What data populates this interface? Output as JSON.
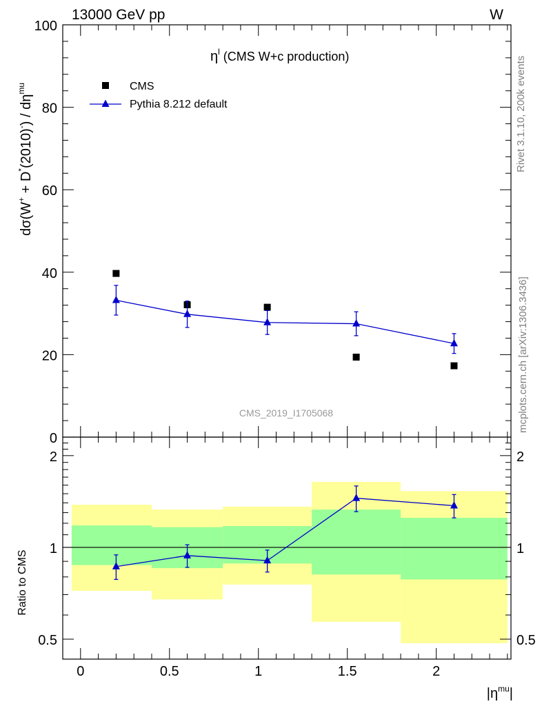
{
  "header": {
    "left": "13000 GeV pp",
    "right": "W"
  },
  "side_labels": {
    "rivet": "Rivet 3.1.10,  200k events",
    "mcplots": "mcplots.cern.ch [arXiv:1306.3436]"
  },
  "chart_data": {
    "type": "scatter",
    "title": "η^l (CMS W+c production)",
    "title_main": "η",
    "title_sup": "l",
    "title_rest": " (CMS W+c production)",
    "analysis_id": "CMS_2019_I1705068",
    "xlabel": "|η^mu|",
    "xlabel_main": "|η",
    "xlabel_sup": "mu",
    "xlabel_end": "|",
    "ylabel": "dσ(W+ + D*(2010)-) / dη^mu",
    "xlim": [
      -0.1,
      2.42
    ],
    "xticks": [
      0,
      0.5,
      1,
      1.5,
      2
    ],
    "xtick_labels": [
      "0",
      "0.5",
      "1",
      "1.5",
      "2"
    ],
    "main": {
      "ylim": [
        0,
        100
      ],
      "yticks": [
        20,
        40,
        60,
        80,
        100
      ],
      "ytick_labels": [
        "20",
        "40",
        "60",
        "80",
        "100"
      ],
      "bottom_tick_label": "0",
      "legend_position": "top-left",
      "series": [
        {
          "name": "CMS",
          "marker": "square",
          "color": "#000000",
          "x": [
            0.2,
            0.6,
            1.05,
            1.55,
            2.1
          ],
          "y": [
            39.7,
            32.1,
            31.5,
            19.4,
            17.3
          ]
        },
        {
          "name": "Pythia 8.212 default",
          "marker": "triangle",
          "color": "#0000cc",
          "x": [
            0.2,
            0.6,
            1.05,
            1.55,
            2.1
          ],
          "y": [
            33.2,
            29.8,
            27.8,
            27.5,
            22.7
          ],
          "yerr": [
            3.6,
            3.2,
            2.9,
            2.9,
            2.4
          ]
        }
      ]
    },
    "ratio": {
      "ylabel": "Ratio to CMS",
      "ylim": [
        0.43,
        2.3
      ],
      "scale": "log",
      "yticks": [
        0.5,
        1,
        2
      ],
      "ytick_labels": [
        "0.5",
        "1",
        "2"
      ],
      "reference": 1.0,
      "bins": [
        {
          "lo": -0.05,
          "hi": 0.4,
          "green": [
            0.875,
            1.18
          ],
          "yellow": [
            0.72,
            1.38
          ]
        },
        {
          "lo": 0.4,
          "hi": 0.8,
          "green": [
            0.855,
            1.165
          ],
          "yellow": [
            0.675,
            1.33
          ]
        },
        {
          "lo": 0.8,
          "hi": 1.3,
          "green": [
            0.885,
            1.175
          ],
          "yellow": [
            0.755,
            1.36
          ]
        },
        {
          "lo": 1.3,
          "hi": 1.8,
          "green": [
            0.815,
            1.33
          ],
          "yellow": [
            0.57,
            1.64
          ]
        },
        {
          "lo": 1.8,
          "hi": 2.4,
          "green": [
            0.785,
            1.25
          ],
          "yellow": [
            0.485,
            1.53
          ]
        }
      ],
      "pythia": {
        "x": [
          0.2,
          0.6,
          1.05,
          1.55,
          2.1
        ],
        "y": [
          0.865,
          0.94,
          0.905,
          1.45,
          1.37
        ],
        "yerr": [
          0.08,
          0.08,
          0.075,
          0.14,
          0.12
        ]
      }
    }
  }
}
